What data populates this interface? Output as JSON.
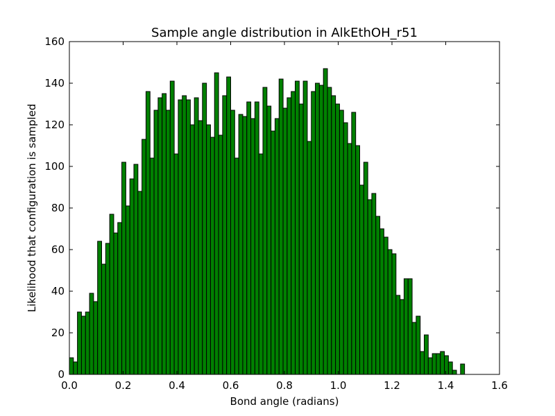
{
  "chart_data": {
    "type": "bar",
    "title": "Sample angle distribution in AlkEthOH_r51",
    "xlabel": "Bond angle (radians)",
    "ylabel": "Likelihood that configuration is sampled",
    "xlim": [
      0,
      1.6
    ],
    "ylim": [
      0,
      160
    ],
    "xticks": [
      "0.0",
      "0.2",
      "0.4",
      "0.6",
      "0.8",
      "1.0",
      "1.2",
      "1.4",
      "1.6"
    ],
    "yticks": [
      "0",
      "20",
      "40",
      "60",
      "80",
      "100",
      "120",
      "140",
      "160"
    ],
    "bin_width": 0.015,
    "bin_start": 0.0,
    "bar_color": "#008000",
    "edge_color": "#000000",
    "values": [
      8,
      6,
      30,
      28,
      30,
      39,
      35,
      64,
      53,
      63,
      77,
      68,
      73,
      102,
      81,
      94,
      101,
      88,
      113,
      136,
      104,
      127,
      133,
      135,
      127,
      141,
      106,
      132,
      134,
      132,
      120,
      133,
      122,
      140,
      120,
      114,
      145,
      115,
      134,
      143,
      127,
      104,
      125,
      124,
      131,
      123,
      131,
      106,
      138,
      129,
      117,
      123,
      142,
      128,
      133,
      136,
      141,
      130,
      141,
      112,
      136,
      140,
      139,
      147,
      138,
      134,
      130,
      127,
      121,
      111,
      126,
      110,
      91,
      102,
      84,
      87,
      76,
      70,
      66,
      60,
      58,
      38,
      36,
      46,
      46,
      25,
      28,
      11,
      19,
      8,
      10,
      10,
      11,
      9,
      6,
      2,
      0,
      5
    ]
  }
}
